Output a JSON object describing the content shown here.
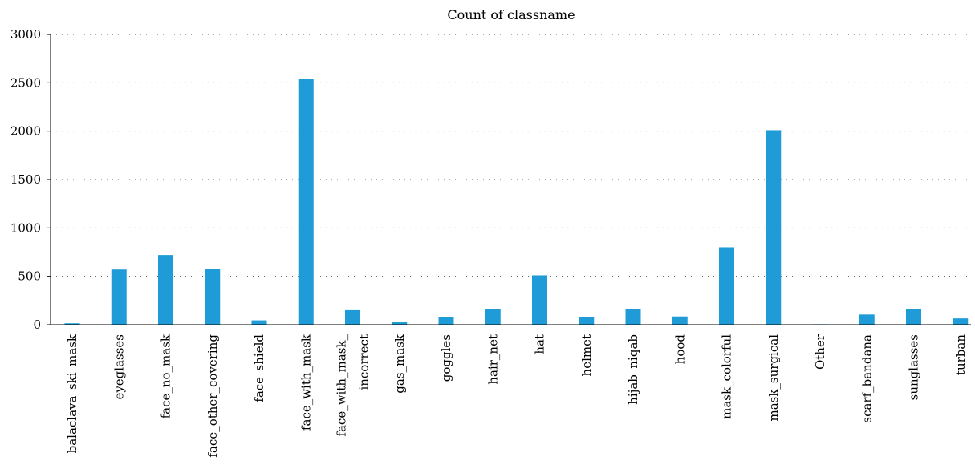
{
  "chart_data": {
    "type": "bar",
    "title": "Count of classname",
    "xlabel": "",
    "ylabel": "",
    "ylim": [
      0,
      3000
    ],
    "yticks": [
      0,
      500,
      1000,
      1500,
      2000,
      2500,
      3000
    ],
    "grid": true,
    "bar_color": "#1f9bd8",
    "categories": [
      [
        "balaclava_ski_mask"
      ],
      [
        "eyeglasses"
      ],
      [
        "face_no_mask"
      ],
      [
        "face_other_covering"
      ],
      [
        "face_shield"
      ],
      [
        "face_with_mask"
      ],
      [
        "face_with_mask_",
        "incorrect"
      ],
      [
        "gas_mask"
      ],
      [
        "goggles"
      ],
      [
        "hair_net"
      ],
      [
        "hat"
      ],
      [
        "helmet"
      ],
      [
        "hijab_niqab"
      ],
      [
        "hood"
      ],
      [
        "mask_colorful"
      ],
      [
        "mask_surgical"
      ],
      [
        "Other"
      ],
      [
        "scarf_bandana"
      ],
      [
        "sunglasses"
      ],
      [
        "turban"
      ]
    ],
    "values": [
      15,
      570,
      720,
      580,
      45,
      2540,
      150,
      25,
      80,
      165,
      510,
      75,
      165,
      85,
      800,
      2010,
      5,
      105,
      165,
      65
    ]
  }
}
